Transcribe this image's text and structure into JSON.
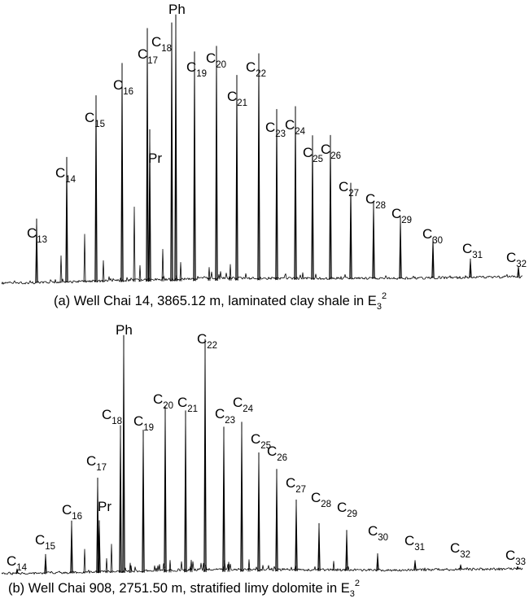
{
  "chart_data": [
    {
      "type": "line",
      "caption": {
        "prefix": "(a) Well Chai 14, 3865.12 m,  laminated clay shale in E",
        "subscript": "3",
        "superscript": "2"
      },
      "peaks": [
        {
          "label": "C",
          "sub": "13",
          "rel_height": 0.24
        },
        {
          "label": "C",
          "sub": "14",
          "rel_height": 0.47
        },
        {
          "label": "C",
          "sub": "15",
          "rel_height": 0.7
        },
        {
          "label": "C",
          "sub": "16",
          "rel_height": 0.82
        },
        {
          "label": "C",
          "sub": "17",
          "rel_height": 0.95
        },
        {
          "label": "Pr",
          "sub": "",
          "rel_height": 0.57
        },
        {
          "label": "C",
          "sub": "18",
          "rel_height": 0.97
        },
        {
          "label": "Ph",
          "sub": "",
          "rel_height": 1.0
        },
        {
          "label": "C",
          "sub": "19",
          "rel_height": 0.86
        },
        {
          "label": "C",
          "sub": "20",
          "rel_height": 0.88
        },
        {
          "label": "C",
          "sub": "21",
          "rel_height": 0.77
        },
        {
          "label": "C",
          "sub": "22",
          "rel_height": 0.85
        },
        {
          "label": "C",
          "sub": "23",
          "rel_height": 0.64
        },
        {
          "label": "C",
          "sub": "24",
          "rel_height": 0.65
        },
        {
          "label": "C",
          "sub": "25",
          "rel_height": 0.54
        },
        {
          "label": "C",
          "sub": "26",
          "rel_height": 0.54
        },
        {
          "label": "C",
          "sub": "27",
          "rel_height": 0.36
        },
        {
          "label": "C",
          "sub": "28",
          "rel_height": 0.29
        },
        {
          "label": "C",
          "sub": "29",
          "rel_height": 0.23
        },
        {
          "label": "C",
          "sub": "30",
          "rel_height": 0.15
        },
        {
          "label": "C",
          "sub": "31",
          "rel_height": 0.07
        },
        {
          "label": "C",
          "sub": "32",
          "rel_height": 0.04
        }
      ]
    },
    {
      "type": "line",
      "caption": {
        "prefix": "(b) Well Chai 908, 2751.50 m, stratified limy dolomite in E",
        "subscript": "3",
        "superscript": "2"
      },
      "peaks": [
        {
          "label": "C",
          "sub": "14",
          "rel_height": 0.02
        },
        {
          "label": "C",
          "sub": "15",
          "rel_height": 0.08
        },
        {
          "label": "C",
          "sub": "16",
          "rel_height": 0.22
        },
        {
          "label": "C",
          "sub": "17",
          "rel_height": 0.4
        },
        {
          "label": "Pr",
          "sub": "",
          "rel_height": 0.22
        },
        {
          "label": "C",
          "sub": "18",
          "rel_height": 0.62
        },
        {
          "label": "Ph",
          "sub": "",
          "rel_height": 1.0
        },
        {
          "label": "C",
          "sub": "19",
          "rel_height": 0.6
        },
        {
          "label": "C",
          "sub": "20",
          "rel_height": 0.7
        },
        {
          "label": "C",
          "sub": "21",
          "rel_height": 0.68
        },
        {
          "label": "C",
          "sub": "22",
          "rel_height": 0.98
        },
        {
          "label": "C",
          "sub": "23",
          "rel_height": 0.61
        },
        {
          "label": "C",
          "sub": "24",
          "rel_height": 0.63
        },
        {
          "label": "C",
          "sub": "25",
          "rel_height": 0.5
        },
        {
          "label": "C",
          "sub": "26",
          "rel_height": 0.43
        },
        {
          "label": "C",
          "sub": "27",
          "rel_height": 0.3
        },
        {
          "label": "C",
          "sub": "28",
          "rel_height": 0.2
        },
        {
          "label": "C",
          "sub": "29",
          "rel_height": 0.17
        },
        {
          "label": "C",
          "sub": "30",
          "rel_height": 0.07
        },
        {
          "label": "C",
          "sub": "31",
          "rel_height": 0.04
        },
        {
          "label": "C",
          "sub": "32",
          "rel_height": 0.02
        },
        {
          "label": "C",
          "sub": "33",
          "rel_height": 0.01
        }
      ]
    }
  ]
}
